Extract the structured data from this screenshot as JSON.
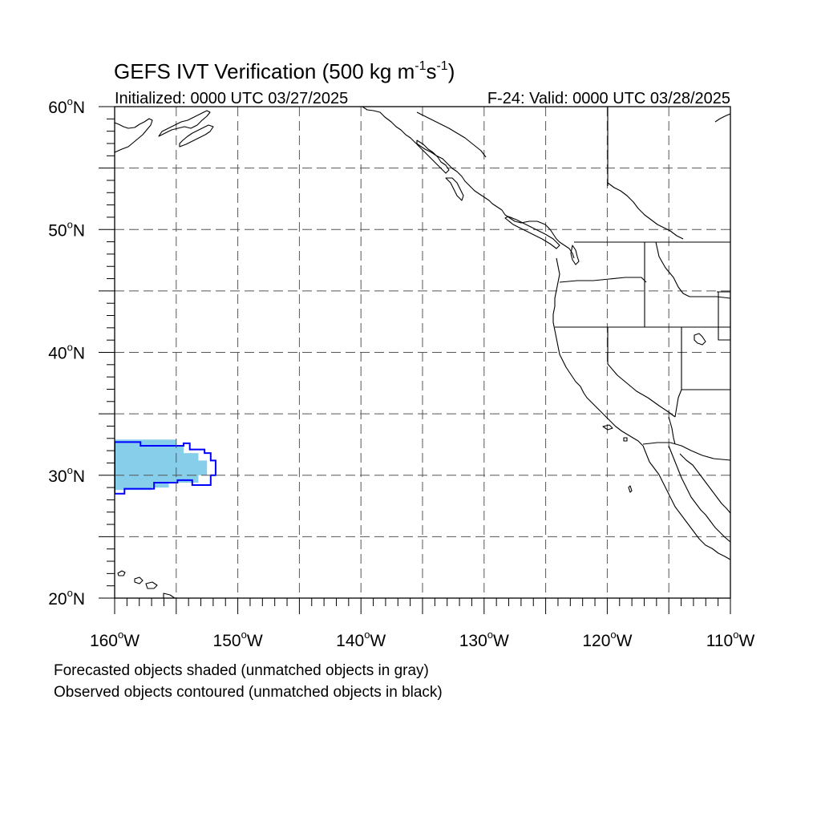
{
  "title": {
    "main": "GEFS IVT Verification (500 kg m",
    "exp1": "-1",
    "mid": "s",
    "exp2": "-1",
    "end": ")"
  },
  "subtitle_left": "Initialized: 0000 UTC 03/27/2025",
  "subtitle_right": "F-24: Valid: 0000 UTC 03/28/2025",
  "notes": [
    "Forecasted objects shaded (unmatched objects in gray)",
    "Observed objects contoured (unmatched objects in black)"
  ],
  "map": {
    "lon_range": [
      -160,
      -110
    ],
    "lat_range": [
      20,
      60
    ],
    "lon_labels": [
      {
        "lon": -160,
        "deg": "160",
        "hemi": "W"
      },
      {
        "lon": -150,
        "deg": "150",
        "hemi": "W"
      },
      {
        "lon": -140,
        "deg": "140",
        "hemi": "W"
      },
      {
        "lon": -130,
        "deg": "130",
        "hemi": "W"
      },
      {
        "lon": -120,
        "deg": "120",
        "hemi": "W"
      },
      {
        "lon": -110,
        "deg": "110",
        "hemi": "W"
      }
    ],
    "lat_labels": [
      {
        "lat": 60,
        "deg": "60",
        "hemi": "N"
      },
      {
        "lat": 50,
        "deg": "50",
        "hemi": "N"
      },
      {
        "lat": 40,
        "deg": "40",
        "hemi": "N"
      },
      {
        "lat": 30,
        "deg": "30",
        "hemi": "N"
      },
      {
        "lat": 20,
        "deg": "20",
        "hemi": "N"
      }
    ],
    "grid_interval_deg": 5,
    "minor_tick_deg": 1,
    "grid_style": "dashed",
    "forecast_object": {
      "fill_color": "#87ceeb",
      "matched": true,
      "outline": [
        [
          -160,
          32.9
        ],
        [
          -155,
          32.9
        ],
        [
          -155,
          32.4
        ],
        [
          -154.4,
          32.4
        ],
        [
          -154.4,
          31.8
        ],
        [
          -153.2,
          31.8
        ],
        [
          -153.2,
          31.2
        ],
        [
          -152.5,
          31.2
        ],
        [
          -152.5,
          30.0
        ],
        [
          -153.2,
          30.0
        ],
        [
          -153.2,
          29.4
        ],
        [
          -155.6,
          29.4
        ],
        [
          -155.6,
          29.0
        ],
        [
          -157.0,
          29.0
        ],
        [
          -157.0,
          28.8
        ],
        [
          -160,
          28.8
        ]
      ]
    },
    "observed_object": {
      "contour_color": "#0000ff",
      "matched": true,
      "outline": [
        [
          -160,
          32.7
        ],
        [
          -157.9,
          32.7
        ],
        [
          -157.9,
          32.4
        ],
        [
          -154.4,
          32.4
        ],
        [
          -154.4,
          32.6
        ],
        [
          -153.9,
          32.6
        ],
        [
          -153.9,
          32.1
        ],
        [
          -152.7,
          32.1
        ],
        [
          -152.7,
          31.8
        ],
        [
          -152.2,
          31.8
        ],
        [
          -152.2,
          31.2
        ],
        [
          -151.8,
          31.2
        ],
        [
          -151.8,
          30.0
        ],
        [
          -152.2,
          30.0
        ],
        [
          -152.2,
          29.2
        ],
        [
          -153.7,
          29.2
        ],
        [
          -153.7,
          29.6
        ],
        [
          -154.9,
          29.6
        ],
        [
          -154.9,
          29.4
        ],
        [
          -156.8,
          29.4
        ],
        [
          -156.8,
          28.9
        ],
        [
          -159.2,
          28.9
        ],
        [
          -159.2,
          28.5
        ],
        [
          -160,
          28.5
        ]
      ]
    },
    "land_color": "#000000"
  }
}
